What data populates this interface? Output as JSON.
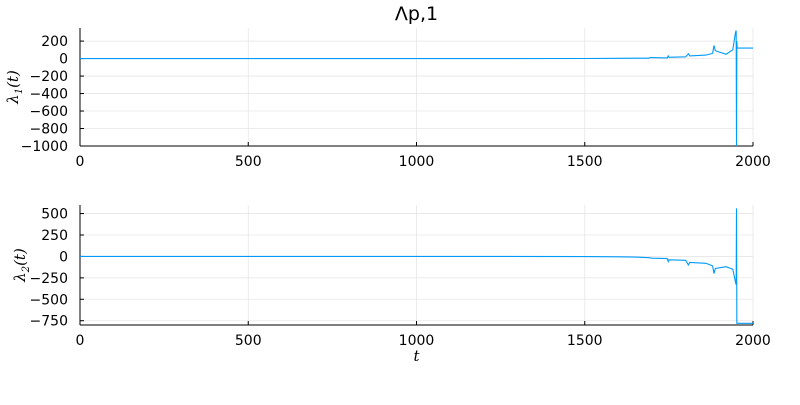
{
  "chart_data": [
    {
      "type": "line",
      "title": "Λp,1",
      "xlabel": "",
      "ylabel": "λ1(t)",
      "ylabel_main": "λ",
      "ylabel_sub": "1",
      "ylabel_arg": "(t)",
      "xlim": [
        0,
        2000
      ],
      "ylim": [
        -1000,
        350
      ],
      "xticks": [
        0,
        500,
        1000,
        1500,
        2000
      ],
      "yticks": [
        200,
        0,
        -200,
        -400,
        -600,
        -800,
        -1000
      ],
      "xtick_labels": [
        "0",
        "500",
        "1000",
        "1500",
        "2000"
      ],
      "ytick_labels": [
        "200",
        "0",
        "−200",
        "−400",
        "−600",
        "−800",
        "−1000"
      ],
      "grid": true,
      "color": "#009af9",
      "series": [
        {
          "x": [
            0,
            400,
            800,
            1200,
            1500,
            1600,
            1690,
            1695,
            1745,
            1748,
            1750,
            1800,
            1808,
            1812,
            1860,
            1880,
            1884,
            1888,
            1920,
            1940,
            1948,
            1950,
            1951,
            1952,
            1953,
            1955,
            1960,
            2000
          ],
          "y": [
            0,
            0,
            0,
            0,
            1,
            3,
            5,
            12,
            8,
            30,
            15,
            20,
            55,
            30,
            40,
            60,
            150,
            90,
            50,
            100,
            300,
            320,
            -1000,
            200,
            120,
            120,
            120,
            120
          ]
        }
      ]
    },
    {
      "type": "line",
      "title": "",
      "xlabel": "t",
      "ylabel": "λ2(t)",
      "ylabel_main": "λ",
      "ylabel_sub": "2",
      "ylabel_arg": "(t)",
      "xlim": [
        0,
        2000
      ],
      "ylim": [
        -800,
        600
      ],
      "xticks": [
        0,
        500,
        1000,
        1500,
        2000
      ],
      "yticks": [
        500,
        250,
        0,
        -250,
        -500,
        -750
      ],
      "xtick_labels": [
        "0",
        "500",
        "1000",
        "1500",
        "2000"
      ],
      "ytick_labels": [
        "500",
        "250",
        "0",
        "−250",
        "−500",
        "−750"
      ],
      "grid": true,
      "color": "#009af9",
      "series": [
        {
          "x": [
            0,
            400,
            800,
            1200,
            1500,
            1600,
            1650,
            1690,
            1700,
            1745,
            1748,
            1750,
            1800,
            1808,
            1812,
            1860,
            1880,
            1884,
            1888,
            1920,
            1940,
            1948,
            1950,
            1951,
            1952,
            1953,
            1955,
            2000
          ],
          "y": [
            0,
            0,
            0,
            0,
            -2,
            -5,
            -8,
            -15,
            -20,
            -25,
            -60,
            -40,
            -45,
            -100,
            -70,
            -80,
            -110,
            -200,
            -140,
            -120,
            -150,
            -300,
            -330,
            560,
            -780,
            -780,
            -780,
            -780
          ]
        }
      ]
    }
  ]
}
